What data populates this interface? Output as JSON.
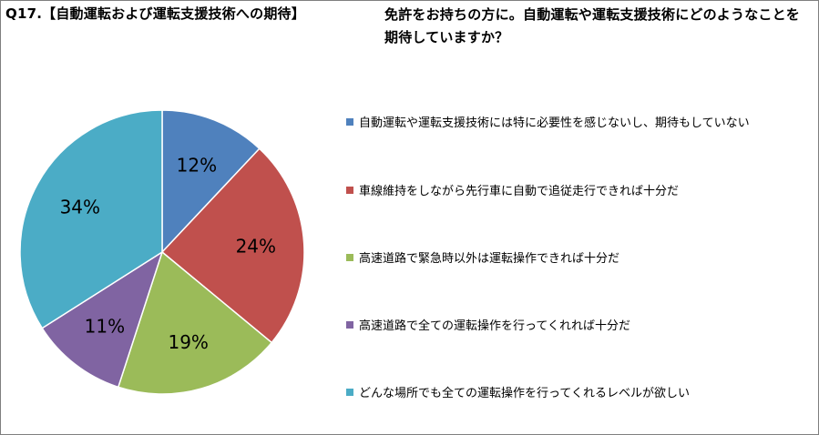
{
  "header": {
    "title": "Q17.【自動運転および運転支援技術への期待】",
    "question": "免許をお持ちの方に。自動運転や運転支援技術にどのようなことを期待していますか？"
  },
  "chart_data": {
    "type": "pie",
    "legend_position": "right",
    "slices": [
      {
        "label": "自動運転や運転支援技術には特に必要性を感じないし、期待もしていない",
        "value": 12,
        "value_label": "12%",
        "color": "#4f81bd"
      },
      {
        "label": "車線維持をしながら先行車に自動で追従走行できれば十分だ",
        "value": 24,
        "value_label": "24%",
        "color": "#c0504d"
      },
      {
        "label": "高速道路で緊急時以外は運転操作できれば十分だ",
        "value": 19,
        "value_label": "19%",
        "color": "#9bbb59"
      },
      {
        "label": "高速道路で全ての運転操作を行ってくれれば十分だ",
        "value": 11,
        "value_label": "11%",
        "color": "#8064a2"
      },
      {
        "label": "どんな場所でも全ての運転操作を行ってくれるレベルが欲しい",
        "value": 34,
        "value_label": "34%",
        "color": "#4bacc6"
      }
    ]
  }
}
